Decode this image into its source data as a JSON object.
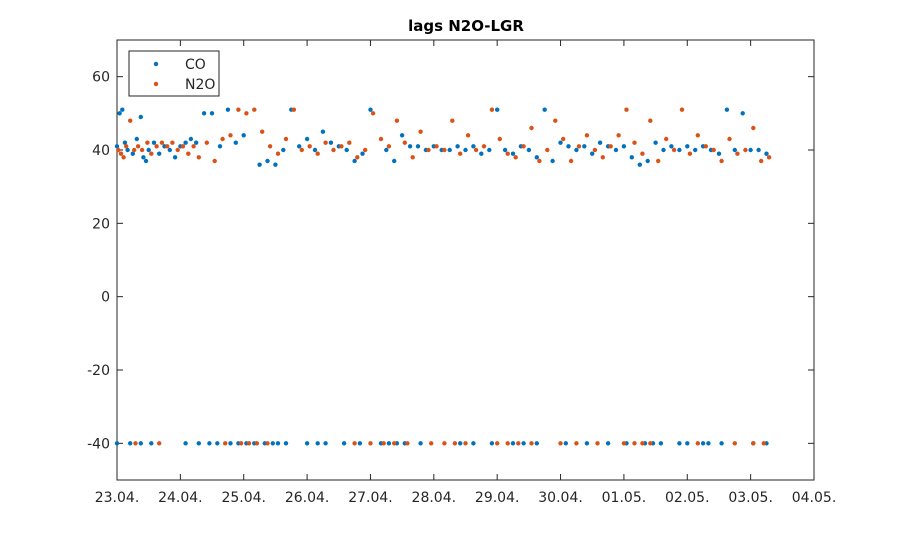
{
  "chart_data": {
    "type": "scatter",
    "title": "lags N2O-LGR",
    "xlabel": "",
    "ylabel": "",
    "xlim": [
      "2024-04-23",
      "2024-05-04"
    ],
    "ylim": [
      -50,
      70
    ],
    "x_ticks": [
      "23.04.",
      "24.04.",
      "25.04.",
      "26.04.",
      "27.04.",
      "28.04.",
      "29.04.",
      "30.04.",
      "01.05.",
      "02.05.",
      "03.05.",
      "04.05."
    ],
    "y_ticks": [
      -40,
      -20,
      0,
      20,
      40,
      60
    ],
    "y_tick_labels": [
      "-40",
      "-20",
      "0",
      "20",
      "40",
      "60"
    ],
    "grid": false,
    "legend_position": "top-left",
    "series": [
      {
        "name": "CO",
        "color": "#0072BD",
        "x": [
          "2024-04-23 00:00",
          "2024-04-23 01:00",
          "2024-04-23 02:00",
          "2024-04-23 03:00",
          "2024-04-23 04:00",
          "2024-04-23 06:00",
          "2024-04-23 07:30",
          "2024-04-23 09:00",
          "2024-04-23 10:00",
          "2024-04-23 11:00",
          "2024-04-23 12:00",
          "2024-04-23 14:00",
          "2024-04-23 16:00",
          "2024-04-23 18:00",
          "2024-04-23 20:00",
          "2024-04-23 22:00",
          "2024-04-24 00:00",
          "2024-04-24 02:00",
          "2024-04-24 04:00",
          "2024-04-24 06:00",
          "2024-04-24 09:00",
          "2024-04-24 12:00",
          "2024-04-24 15:00",
          "2024-04-24 18:00",
          "2024-04-24 21:00",
          "2024-04-25 00:00",
          "2024-04-25 06:00",
          "2024-04-25 09:00",
          "2024-04-25 12:00",
          "2024-04-25 15:00",
          "2024-04-25 18:00",
          "2024-04-25 21:00",
          "2024-04-26 00:00",
          "2024-04-26 03:00",
          "2024-04-26 06:00",
          "2024-04-26 09:00",
          "2024-04-26 12:00",
          "2024-04-26 15:00",
          "2024-04-26 18:00",
          "2024-04-26 21:00",
          "2024-04-27 00:00",
          "2024-04-27 06:00",
          "2024-04-27 09:00",
          "2024-04-27 12:00",
          "2024-04-27 15:00",
          "2024-04-27 18:00",
          "2024-04-27 21:00",
          "2024-04-28 00:00",
          "2024-04-28 03:00",
          "2024-04-28 06:00",
          "2024-04-28 09:00",
          "2024-04-28 12:00",
          "2024-04-28 15:00",
          "2024-04-28 18:00",
          "2024-04-28 21:00",
          "2024-04-29 00:00",
          "2024-04-29 03:00",
          "2024-04-29 06:00",
          "2024-04-29 09:00",
          "2024-04-29 12:00",
          "2024-04-29 15:00",
          "2024-04-29 18:00",
          "2024-04-29 21:00",
          "2024-04-30 00:00",
          "2024-04-30 03:00",
          "2024-04-30 06:00",
          "2024-04-30 09:00",
          "2024-04-30 12:00",
          "2024-04-30 15:00",
          "2024-04-30 18:00",
          "2024-04-30 21:00",
          "2024-05-01 00:00",
          "2024-05-01 03:00",
          "2024-05-01 06:00",
          "2024-05-01 09:00",
          "2024-05-01 12:00",
          "2024-05-01 15:00",
          "2024-05-01 18:00",
          "2024-05-01 21:00",
          "2024-05-02 00:00",
          "2024-05-02 03:00",
          "2024-05-02 06:00",
          "2024-05-02 09:00",
          "2024-05-02 12:00",
          "2024-05-02 15:00",
          "2024-05-02 18:00",
          "2024-05-02 21:00",
          "2024-05-03 00:00",
          "2024-05-03 03:00",
          "2024-05-03 06:00",
          "2024-04-23 00:00",
          "2024-04-23 05:00",
          "2024-04-23 09:00",
          "2024-04-23 13:00",
          "2024-04-24 02:00",
          "2024-04-24 07:00",
          "2024-04-24 11:00",
          "2024-04-24 14:00",
          "2024-04-24 19:00",
          "2024-04-24 22:00",
          "2024-04-25 01:00",
          "2024-04-25 04:00",
          "2024-04-25 08:00",
          "2024-04-25 11:00",
          "2024-04-25 13:00",
          "2024-04-25 16:00",
          "2024-04-26 00:00",
          "2024-04-26 04:00",
          "2024-04-26 07:00",
          "2024-04-26 14:00",
          "2024-04-26 20:00",
          "2024-04-27 04:00",
          "2024-04-27 07:00",
          "2024-04-27 10:00",
          "2024-04-27 13:00",
          "2024-04-27 19:00",
          "2024-04-28 10:00",
          "2024-04-28 15:00",
          "2024-04-28 22:00",
          "2024-04-29 06:00",
          "2024-04-29 10:00",
          "2024-04-29 15:00",
          "2024-04-30 02:00",
          "2024-04-30 10:00",
          "2024-04-30 18:00",
          "2024-05-01 01:00",
          "2024-05-01 08:00",
          "2024-05-01 11:00",
          "2024-05-01 14:00",
          "2024-05-01 21:00",
          "2024-05-02 00:00",
          "2024-05-02 06:00",
          "2024-05-02 08:00",
          "2024-05-02 13:00",
          "2024-05-03 01:00",
          "2024-05-03 06:00"
        ],
        "y": [
          41,
          50,
          51,
          42,
          40,
          39,
          43,
          49,
          38,
          37,
          40,
          42,
          39,
          41,
          40,
          38,
          41,
          42,
          43,
          42,
          50,
          50,
          41,
          51,
          42,
          44,
          36,
          37,
          36,
          40,
          51,
          41,
          43,
          40,
          45,
          42,
          41,
          40,
          37,
          39,
          51,
          40,
          37,
          44,
          41,
          41,
          40,
          41,
          40,
          40,
          41,
          40,
          41,
          39,
          40,
          51,
          40,
          39,
          41,
          40,
          38,
          51,
          37,
          42,
          41,
          40,
          41,
          39,
          42,
          41,
          40,
          41,
          38,
          36,
          37,
          42,
          40,
          41,
          40,
          41,
          40,
          41,
          40,
          39,
          51,
          40,
          50,
          40,
          40,
          39,
          -40,
          -40,
          -40,
          -40,
          -40,
          -40,
          -40,
          -40,
          -40,
          -40,
          -40,
          -40,
          -40,
          -40,
          -40,
          -40,
          -40,
          -40,
          -40,
          -40,
          -40,
          -40,
          -40,
          -40,
          -40,
          -40,
          -40,
          -40,
          -40,
          -40,
          -40,
          -40,
          -40,
          -40,
          -40,
          -40,
          -40,
          -40,
          -40,
          -40,
          -40,
          -40,
          -40,
          -40,
          -40,
          -40
        ]
      },
      {
        "name": "N2O",
        "color": "#D95319",
        "x": [
          "2024-04-23 00:30",
          "2024-04-23 01:30",
          "2024-04-23 02:30",
          "2024-04-23 03:30",
          "2024-04-23 05:00",
          "2024-04-23 06:30",
          "2024-04-23 08:00",
          "2024-04-23 09:30",
          "2024-04-23 11:30",
          "2024-04-23 13:00",
          "2024-04-23 15:00",
          "2024-04-23 17:00",
          "2024-04-23 19:00",
          "2024-04-23 21:00",
          "2024-04-23 23:00",
          "2024-04-24 01:00",
          "2024-04-24 03:00",
          "2024-04-24 05:00",
          "2024-04-24 07:00",
          "2024-04-24 10:00",
          "2024-04-24 13:00",
          "2024-04-24 16:00",
          "2024-04-24 19:00",
          "2024-04-24 22:00",
          "2024-04-25 01:00",
          "2024-04-25 04:00",
          "2024-04-25 07:00",
          "2024-04-25 10:00",
          "2024-04-25 13:00",
          "2024-04-25 16:00",
          "2024-04-25 19:00",
          "2024-04-25 22:00",
          "2024-04-26 01:00",
          "2024-04-26 04:00",
          "2024-04-26 07:00",
          "2024-04-26 10:00",
          "2024-04-26 13:00",
          "2024-04-26 16:00",
          "2024-04-26 19:00",
          "2024-04-26 22:00",
          "2024-04-27 01:00",
          "2024-04-27 04:00",
          "2024-04-27 07:00",
          "2024-04-27 10:00",
          "2024-04-27 13:00",
          "2024-04-27 16:00",
          "2024-04-27 19:00",
          "2024-04-27 22:00",
          "2024-04-28 01:00",
          "2024-04-28 04:00",
          "2024-04-28 07:00",
          "2024-04-28 10:00",
          "2024-04-28 13:00",
          "2024-04-28 16:00",
          "2024-04-28 19:00",
          "2024-04-28 22:00",
          "2024-04-29 01:00",
          "2024-04-29 04:00",
          "2024-04-29 07:00",
          "2024-04-29 10:00",
          "2024-04-29 13:00",
          "2024-04-29 16:00",
          "2024-04-29 19:00",
          "2024-04-29 22:00",
          "2024-04-30 01:00",
          "2024-04-30 04:00",
          "2024-04-30 07:00",
          "2024-04-30 10:00",
          "2024-04-30 13:00",
          "2024-04-30 16:00",
          "2024-04-30 19:00",
          "2024-04-30 22:00",
          "2024-05-01 01:00",
          "2024-05-01 04:00",
          "2024-05-01 07:00",
          "2024-05-01 10:00",
          "2024-05-01 13:00",
          "2024-05-01 16:00",
          "2024-05-01 19:00",
          "2024-05-01 22:00",
          "2024-05-02 01:00",
          "2024-05-02 04:00",
          "2024-05-02 07:00",
          "2024-05-02 10:00",
          "2024-05-02 13:00",
          "2024-05-02 16:00",
          "2024-05-02 19:00",
          "2024-05-02 22:00",
          "2024-05-03 01:00",
          "2024-05-03 04:00",
          "2024-05-03 07:00",
          "2024-04-23 07:00",
          "2024-04-23 16:00",
          "2024-04-24 17:00",
          "2024-04-24 23:00",
          "2024-04-25 02:00",
          "2024-04-25 05:00",
          "2024-04-25 09:00",
          "2024-04-26 18:00",
          "2024-04-27 00:00",
          "2024-04-27 05:00",
          "2024-04-27 09:00",
          "2024-04-27 14:00",
          "2024-04-27 23:00",
          "2024-04-28 04:00",
          "2024-04-28 08:00",
          "2024-04-28 12:00",
          "2024-04-29 00:00",
          "2024-04-29 04:00",
          "2024-04-29 08:00",
          "2024-04-29 13:00",
          "2024-04-30 00:00",
          "2024-04-30 06:00",
          "2024-04-30 14:00",
          "2024-05-01 00:00",
          "2024-05-01 04:00",
          "2024-05-01 07:00",
          "2024-05-01 10:00",
          "2024-05-02 04:00",
          "2024-05-02 18:00",
          "2024-05-03 01:00",
          "2024-05-03 05:00"
        ],
        "y": [
          40,
          39,
          38,
          41,
          48,
          40,
          41,
          40,
          42,
          39,
          41,
          42,
          41,
          42,
          40,
          41,
          39,
          41,
          38,
          42,
          37,
          43,
          44,
          51,
          50,
          51,
          45,
          41,
          39,
          43,
          51,
          40,
          41,
          39,
          42,
          40,
          41,
          42,
          38,
          40,
          50,
          43,
          41,
          48,
          42,
          38,
          45,
          40,
          41,
          40,
          48,
          39,
          44,
          40,
          41,
          51,
          43,
          39,
          38,
          41,
          46,
          37,
          40,
          48,
          43,
          37,
          41,
          44,
          40,
          38,
          41,
          44,
          51,
          42,
          39,
          48,
          37,
          43,
          40,
          51,
          39,
          44,
          41,
          40,
          37,
          43,
          39,
          40,
          46,
          37,
          38,
          -40,
          -40,
          -40,
          -40,
          -40,
          -40,
          -40,
          -40,
          -40,
          -40,
          -40,
          -40,
          -40,
          -40,
          -40,
          -40,
          -40,
          -40,
          -40,
          -40,
          -40,
          -40,
          -40,
          -40,
          -40,
          -40,
          -40,
          -40,
          -40,
          -40,
          -40
        ]
      }
    ]
  }
}
